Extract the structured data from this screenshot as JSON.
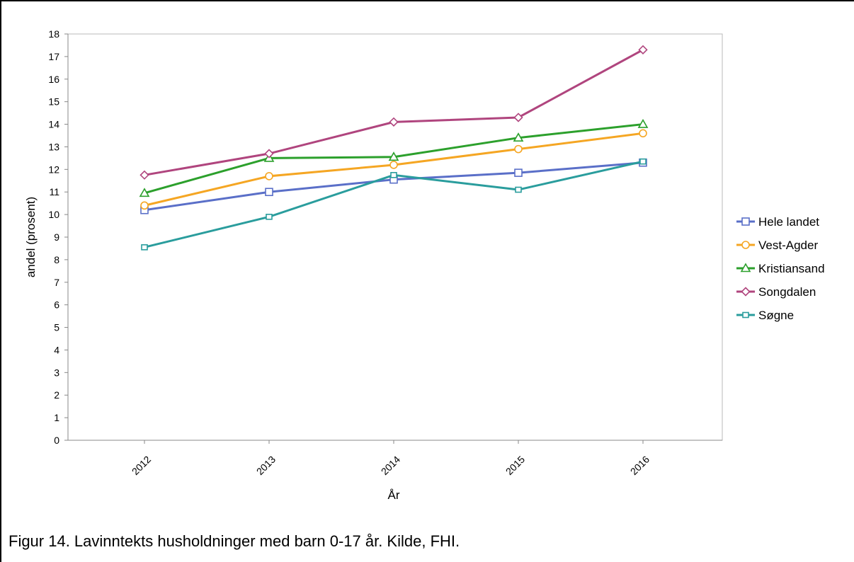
{
  "caption": "Figur 14. Lavinntekts husholdninger med barn 0-17 år. Kilde, FHI.",
  "chart_data": {
    "type": "line",
    "title": "",
    "xlabel": "År",
    "ylabel": "andel (prosent)",
    "x": [
      "2012",
      "2013",
      "2014",
      "2015",
      "2016"
    ],
    "ylim": [
      0,
      18
    ],
    "yticks": [
      "0",
      "1",
      "2",
      "3",
      "4",
      "5",
      "6",
      "7",
      "8",
      "9",
      "10",
      "11",
      "12",
      "13",
      "14",
      "15",
      "16",
      "17",
      "18"
    ],
    "grid": true,
    "legend": "right",
    "series": [
      {
        "name": "Hele landet",
        "color": "#5a6fc8",
        "marker": "square",
        "values": [
          10.2,
          11.0,
          11.55,
          11.85,
          12.3
        ]
      },
      {
        "name": "Vest-Agder",
        "color": "#f5a623",
        "marker": "circle",
        "values": [
          10.4,
          11.7,
          12.2,
          12.9,
          13.6
        ]
      },
      {
        "name": "Kristiansand",
        "color": "#2ca02c",
        "marker": "triangle",
        "values": [
          10.95,
          12.5,
          12.55,
          13.4,
          14.0
        ]
      },
      {
        "name": "Songdalen",
        "color": "#b0457e",
        "marker": "diamond",
        "values": [
          11.75,
          12.7,
          14.1,
          14.3,
          17.3
        ]
      },
      {
        "name": "Søgne",
        "color": "#2a9d9d",
        "marker": "small-square",
        "values": [
          8.55,
          9.9,
          11.75,
          11.1,
          12.35
        ]
      }
    ]
  }
}
